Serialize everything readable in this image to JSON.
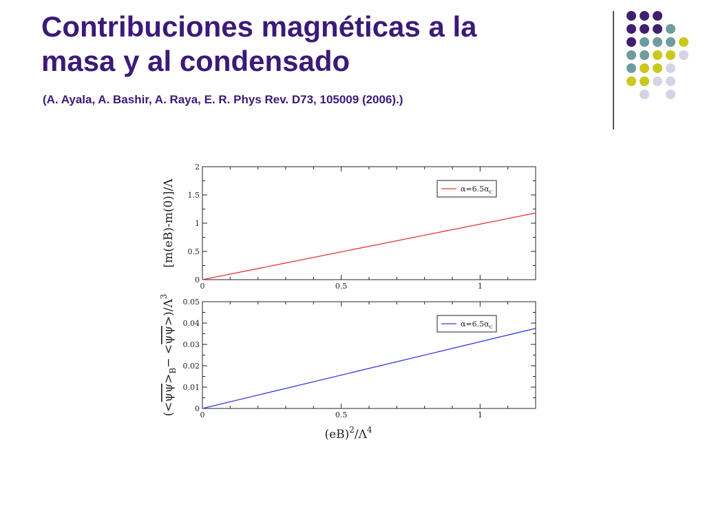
{
  "slide": {
    "title_line1": "Contribuciones magnéticas a la",
    "title_line2": "masa y al condensado",
    "citation": "(A. Ayala, A. Bashir, A. Raya, E. R. Phys Rev. D73, 105009 (2006).)"
  },
  "decor": {
    "dot_colors": [
      "#3f1f6e",
      "#6f9c9c",
      "#c8c81e",
      "#d4d4e6"
    ],
    "rows": [
      [
        0,
        0,
        0,
        null,
        null
      ],
      [
        0,
        0,
        0,
        1,
        null
      ],
      [
        0,
        1,
        1,
        1,
        2
      ],
      [
        1,
        1,
        2,
        2,
        3
      ],
      [
        1,
        2,
        2,
        3,
        null
      ],
      [
        2,
        2,
        3,
        3,
        null
      ],
      [
        null,
        3,
        null,
        3,
        null
      ]
    ]
  },
  "chart_data": [
    {
      "type": "line",
      "ylabel": "[m(eB)-m(0)]/Λ",
      "xlabel": "",
      "xlim": [
        0,
        1.2
      ],
      "ylim": [
        0,
        2
      ],
      "xticks": [
        0,
        0.5,
        1
      ],
      "xtick_labels": [
        "0",
        "0.5",
        "1"
      ],
      "yticks": [
        0,
        0.5,
        1,
        1.5,
        2
      ],
      "ytick_labels": [
        "0",
        "0.5",
        "1",
        "1.5",
        "2"
      ],
      "grid": false,
      "legend_position": "top-right",
      "series": [
        {
          "name": "α=6.5α",
          "name_sub": "c",
          "color": "#e8322d",
          "x": [
            0,
            1.2
          ],
          "y": [
            0,
            1.18
          ]
        }
      ]
    },
    {
      "type": "line",
      "ylabel": "(<ψψ>B− <ψψ>)/Λ3",
      "ylabel_parts": {
        "open": "(<",
        "psi1": "ψψ",
        "mid1": ">",
        "sub_b": "B",
        "mid2": "− <",
        "psi2": "ψψ",
        "mid3": ">)/Λ",
        "sup": "3"
      },
      "xlabel": "(eB)2/Λ4",
      "xlabel_parts": {
        "base": "(eB)",
        "sup1": "2",
        "mid": "/Λ",
        "sup2": "4"
      },
      "xlim": [
        0,
        1.2
      ],
      "ylim": [
        0,
        0.05
      ],
      "xticks": [
        0,
        0.5,
        1
      ],
      "xtick_labels": [
        "0",
        "0.5",
        "1"
      ],
      "yticks": [
        0,
        0.01,
        0.02,
        0.03,
        0.04,
        0.05
      ],
      "ytick_labels": [
        "0",
        "0.01",
        "0.02",
        "0.03",
        "0.04",
        "0.05"
      ],
      "grid": false,
      "legend_position": "top-right",
      "series": [
        {
          "name": "α=6.5α",
          "name_sub": "c",
          "color": "#3333e6",
          "x": [
            0,
            1.2
          ],
          "y": [
            0,
            0.0375
          ]
        }
      ]
    }
  ]
}
